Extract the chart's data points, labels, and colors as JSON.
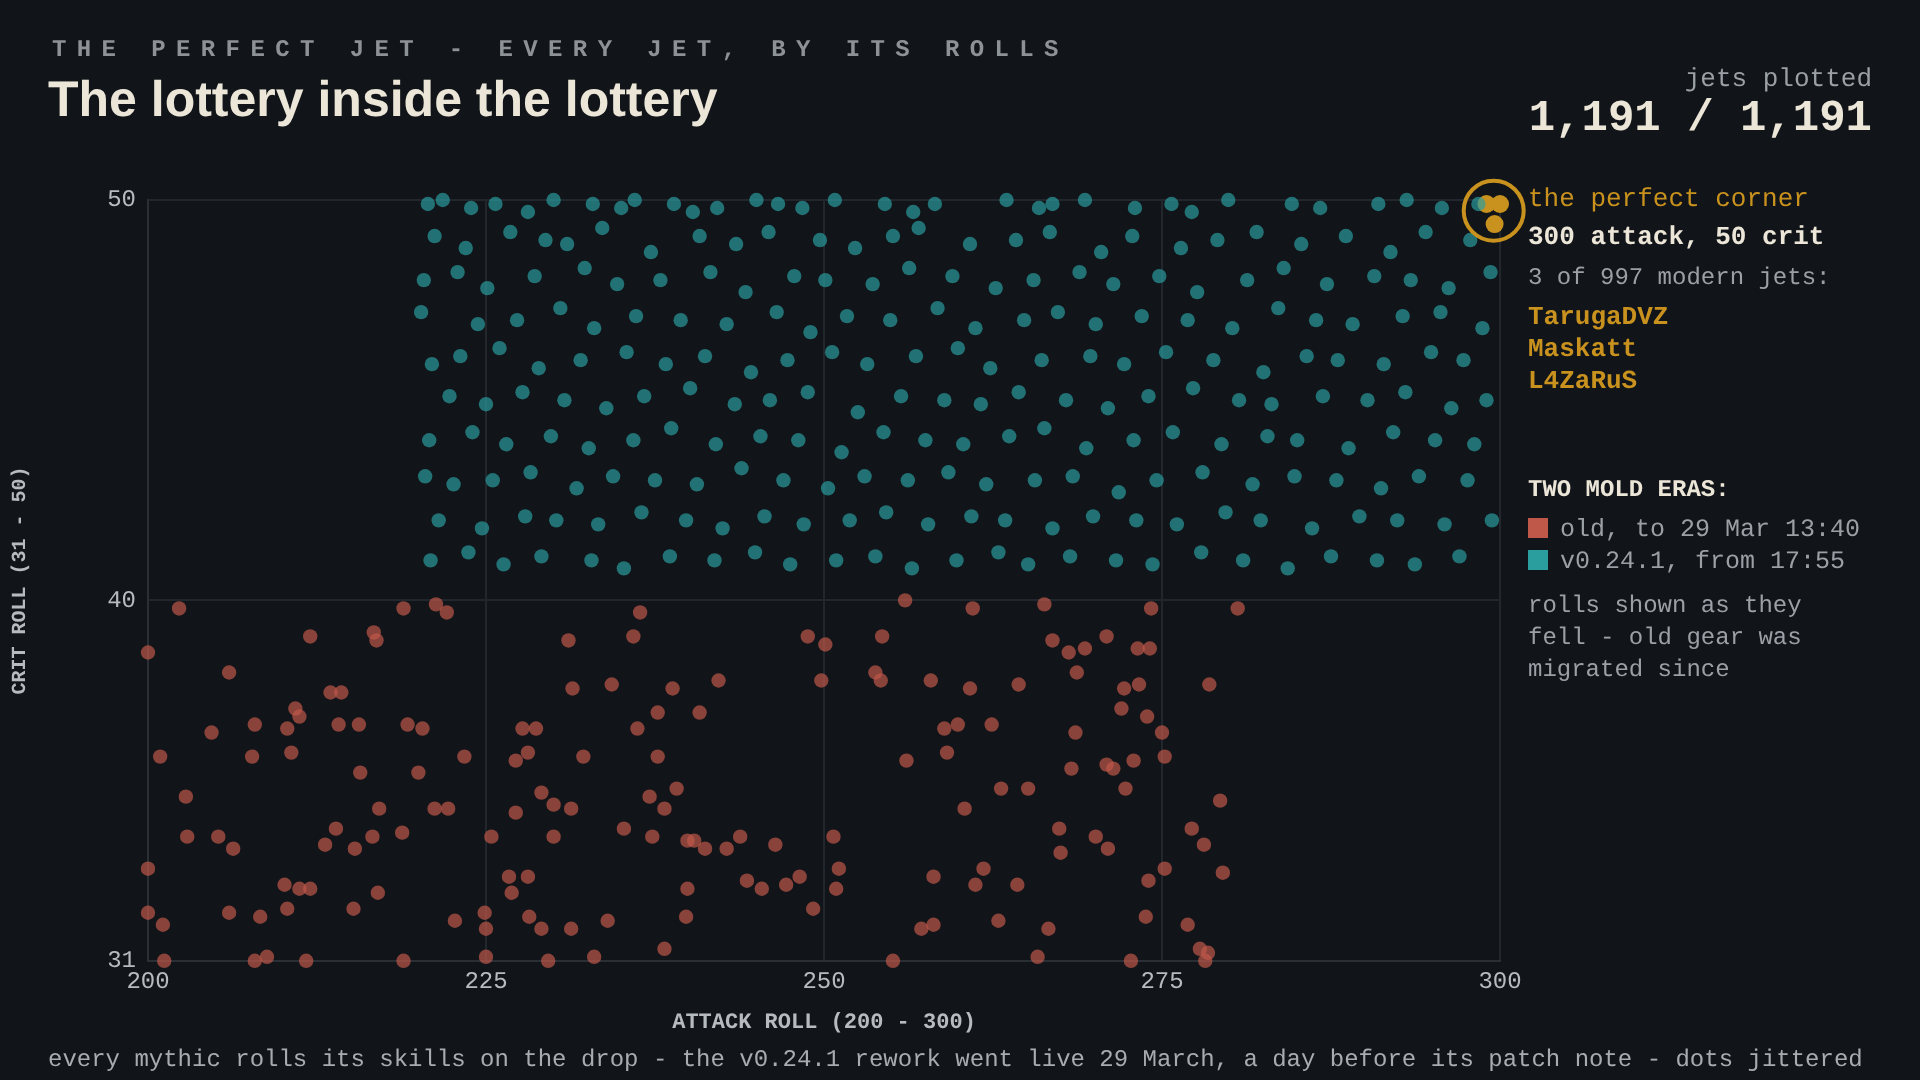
{
  "chart_data": {
    "type": "scatter",
    "subtitle": "THE PERFECT JET - EVERY JET, BY ITS ROLLS",
    "title": "The lottery inside the lottery",
    "xlabel": "ATTACK ROLL (200 - 300)",
    "ylabel": "CRIT ROLL (31 - 50)",
    "legend_title": "TWO MOLD ERAS:",
    "legend": "right",
    "grid": true,
    "marker": "circle",
    "xlim": [
      200,
      300
    ],
    "xticks": [
      200,
      225,
      250,
      275,
      300
    ],
    "ylim": [
      31,
      50
    ],
    "yticks": [
      31,
      40,
      50
    ],
    "annotations": [
      "jets plotted",
      "1,191 / 1,191",
      "300 attack, 50 crit",
      "3 of 997 modern jets:",
      "TarugaDVZ",
      "Maskatt",
      "L4ZaRuS",
      "rolls shown as they fell - old gear was migrated since",
      "every mythic rolls its skills on the drop - the v0.24.1 rework went live 29 March, a day before its patch note - dots jittered"
    ],
    "series": [
      {
        "name": "old, to 29 Mar 13:40",
        "color": "#c0584a",
        "x": [
          200,
          202.3,
          200.9,
          202.8,
          202.9,
          200,
          200,
          201.1,
          201.2,
          204.7,
          205.2,
          206,
          206.3,
          206,
          207.9,
          207.7,
          208.3,
          208.8,
          207.9,
          210.3,
          210.9,
          211.2,
          210.6,
          210.1,
          210.3,
          211.2,
          212,
          212,
          211.7,
          213.1,
          213.5,
          214.3,
          214.1,
          213.9,
          215.2,
          215.3,
          215.7,
          215.6,
          216.7,
          216.9,
          216.6,
          217.1,
          217,
          218.9,
          218.8,
          218.9,
          219.2,
          220,
          220.3,
          221.3,
          222.1,
          221.2,
          222.2,
          222.7,
          223.4,
          224.9,
          225,
          225,
          225.4,
          226.7,
          226.9,
          227.2,
          227.2,
          227.7,
          228.7,
          228.1,
          228.1,
          228.2,
          229.1,
          229.1,
          229.6,
          230,
          230,
          231.1,
          231.4,
          231.3,
          231.3,
          232.2,
          233,
          234,
          234.3,
          235.2,
          235.9,
          236.4,
          236.2,
          237.1,
          237.3,
          237.7,
          237.7,
          238.2,
          238.2,
          238.8,
          239.1,
          239.9,
          239.9,
          239.8,
          240.4,
          240.8,
          241.2,
          242.2,
          242.8,
          243.8,
          244.3,
          245.4,
          246.4,
          247.2,
          248.2,
          248.8,
          249.2,
          249.8,
          250.1,
          250.7,
          251.1,
          250.9,
          253.8,
          254.2,
          254.3,
          255.1,
          256,
          256.1,
          257.2,
          258.1,
          258.1,
          257.9,
          258.9,
          259.1,
          259.9,
          260.4,
          260.8,
          261,
          261.2,
          261.8,
          262.4,
          262.9,
          263.1,
          264.3,
          264.4,
          265.1,
          265.8,
          266.3,
          266.6,
          266.9,
          267.4,
          267.5,
          268.1,
          268.3,
          268.6,
          268.7,
          269.3,
          270.1,
          270.9,
          271,
          270.9,
          271.4,
          272,
          272.2,
          272.3,
          272.7,
          272.9,
          273.3,
          273.2,
          273.8,
          273.9,
          274.1,
          274.2,
          274,
          275,
          275.2,
          275.2,
          276.9,
          277.2,
          277.8,
          278.1,
          278.5,
          278.4,
          278.2,
          279.3,
          279.5,
          280.6
        ],
        "values": [
          38.7,
          39.8,
          36.1,
          35.1,
          34.1,
          33.3,
          32.2,
          31.9,
          31,
          36.7,
          34.1,
          38.2,
          33.8,
          32.2,
          36.9,
          36.1,
          32.1,
          31.1,
          31,
          36.8,
          37.3,
          37.1,
          36.2,
          32.9,
          32.3,
          32.8,
          39.1,
          32.8,
          31,
          33.9,
          37.7,
          37.7,
          36.9,
          34.3,
          32.3,
          33.8,
          35.7,
          36.9,
          39.2,
          39,
          34.1,
          34.8,
          32.7,
          39.8,
          34.2,
          31,
          36.9,
          35.7,
          36.8,
          39.9,
          39.7,
          34.8,
          34.8,
          32,
          36.1,
          32.2,
          31.8,
          31.1,
          34.1,
          33.1,
          32.7,
          34.7,
          36,
          36.8,
          36.8,
          36.2,
          33.1,
          32.1,
          35.2,
          31.8,
          31,
          34.9,
          34.1,
          39,
          37.8,
          34.8,
          31.8,
          36.1,
          31.1,
          32,
          37.9,
          34.3,
          39.1,
          39.7,
          36.8,
          35.1,
          34.1,
          37.2,
          36.1,
          34.8,
          31.3,
          37.8,
          35.3,
          34,
          32.8,
          32.1,
          34,
          37.2,
          33.8,
          38,
          33.8,
          34.1,
          33,
          32.8,
          33.9,
          32.9,
          33.1,
          39.1,
          32.3,
          38,
          38.9,
          34.1,
          33.3,
          32.8,
          38.2,
          38,
          39.1,
          31,
          40,
          36,
          31.8,
          31.9,
          33.1,
          38,
          36.8,
          36.2,
          36.9,
          34.8,
          37.8,
          39.8,
          32.9,
          33.3,
          36.9,
          32,
          35.3,
          32.9,
          37.9,
          35.3,
          31.1,
          39.9,
          31.8,
          39,
          34.3,
          33.7,
          38.7,
          35.8,
          36.7,
          38.2,
          38.8,
          34.1,
          39.1,
          33.8,
          35.9,
          35.8,
          37.3,
          37.8,
          35.3,
          31,
          36,
          37.9,
          38.8,
          32.1,
          37.1,
          38.8,
          39.8,
          33,
          36.7,
          36.1,
          33.3,
          31.9,
          34.3,
          31.3,
          33.9,
          37.9,
          31.2,
          31,
          35,
          33.2,
          39.8
        ]
      },
      {
        "name": "v0.24.1, from 17:55",
        "color": "#2a9d9f",
        "x": [
          220.7,
          221.8,
          223.9,
          225.7,
          228.1,
          230,
          232.9,
          235,
          236,
          238.9,
          240.3,
          242.1,
          245,
          246.6,
          248.4,
          250.8,
          254.5,
          256.6,
          258.2,
          263.5,
          265.9,
          266.9,
          269.3,
          273,
          275.7,
          277.2,
          279.9,
          284.6,
          286.7,
          291,
          293.1,
          295.7,
          298.4,
          221.2,
          223.5,
          226.8,
          229.4,
          231.0,
          233.6,
          237.2,
          240.8,
          243.5,
          245.9,
          249.7,
          252.3,
          255.1,
          257.0,
          260.8,
          264.2,
          266.7,
          270.5,
          272.8,
          276.4,
          279.1,
          282.0,
          285.3,
          288.6,
          291.9,
          294.5,
          297.8,
          220.4,
          222.9,
          225.1,
          228.6,
          232.3,
          234.7,
          237.9,
          241.6,
          244.2,
          247.8,
          250.1,
          253.6,
          256.3,
          259.5,
          262.7,
          265.5,
          268.9,
          271.4,
          274.8,
          277.6,
          281.3,
          284.0,
          287.2,
          290.7,
          293.4,
          296.2,
          299.3,
          220.2,
          224.4,
          227.3,
          230.5,
          233.0,
          236.1,
          239.4,
          242.8,
          246.5,
          249.0,
          251.7,
          254.9,
          258.4,
          261.2,
          264.8,
          267.3,
          270.1,
          273.5,
          276.9,
          280.2,
          283.6,
          286.4,
          289.1,
          292.8,
          295.6,
          298.7,
          221.0,
          223.1,
          226.0,
          228.9,
          232.0,
          235.4,
          238.3,
          241.2,
          244.6,
          247.3,
          250.6,
          253.2,
          256.8,
          259.9,
          262.3,
          266.1,
          269.7,
          272.2,
          275.3,
          278.8,
          282.5,
          285.7,
          288.0,
          291.4,
          294.9,
          297.3,
          222.3,
          225.0,
          227.7,
          230.8,
          233.9,
          236.7,
          240.1,
          243.4,
          246.0,
          248.8,
          252.5,
          255.7,
          258.9,
          261.6,
          264.4,
          267.9,
          271.0,
          274.0,
          277.3,
          280.7,
          283.1,
          286.9,
          290.2,
          293.0,
          296.4,
          299.0,
          220.8,
          224.0,
          226.5,
          229.8,
          232.6,
          235.9,
          238.7,
          242.0,
          245.3,
          248.1,
          251.3,
          254.4,
          257.5,
          260.3,
          263.7,
          266.3,
          269.4,
          272.9,
          275.8,
          279.4,
          282.8,
          285.0,
          288.8,
          292.1,
          295.2,
          298.1,
          220.5,
          222.6,
          225.5,
          228.3,
          231.7,
          234.4,
          237.5,
          240.6,
          243.9,
          247.0,
          250.3,
          253.0,
          256.2,
          259.2,
          262.0,
          265.6,
          268.4,
          271.8,
          274.6,
          278.0,
          281.7,
          284.8,
          287.9,
          291.2,
          294.0,
          297.6,
          221.5,
          224.7,
          227.9,
          230.2,
          233.3,
          236.5,
          239.8,
          242.5,
          245.6,
          248.5,
          251.9,
          254.6,
          257.7,
          260.9,
          263.4,
          266.9,
          269.9,
          273.1,
          276.1,
          279.7,
          282.3,
          286.1,
          289.6,
          292.4,
          295.9,
          299.4,
          220.9,
          223.7,
          226.3,
          229.1,
          232.8,
          235.2,
          238.6,
          241.9,
          244.9,
          247.5,
          250.9,
          253.8,
          256.5,
          259.8,
          262.9,
          265.1,
          268.2,
          271.6,
          274.3,
          277.9,
          281.0,
          284.3,
          287.5,
          290.9,
          293.7,
          297.0
        ],
        "values": [
          49.9,
          50,
          49.8,
          49.9,
          49.7,
          50,
          49.9,
          49.8,
          50,
          49.9,
          49.7,
          49.8,
          50,
          49.9,
          49.8,
          50,
          49.9,
          49.7,
          49.9,
          50,
          49.8,
          49.9,
          50,
          49.8,
          49.9,
          49.7,
          50,
          49.9,
          49.8,
          49.9,
          50,
          49.8,
          49.9,
          49.1,
          48.8,
          49.2,
          49,
          48.9,
          49.3,
          48.7,
          49.1,
          48.9,
          49.2,
          49,
          48.8,
          49.1,
          49.3,
          48.9,
          49,
          49.2,
          48.7,
          49.1,
          48.8,
          49,
          49.2,
          48.9,
          49.1,
          48.7,
          49.2,
          49,
          48,
          48.2,
          47.8,
          48.1,
          48.3,
          47.9,
          48,
          48.2,
          47.7,
          48.1,
          48,
          47.9,
          48.3,
          48.1,
          47.8,
          48,
          48.2,
          47.9,
          48.1,
          47.7,
          48,
          48.3,
          47.9,
          48.1,
          48,
          47.8,
          48.2,
          47.2,
          46.9,
          47,
          47.3,
          46.8,
          47.1,
          47,
          46.9,
          47.2,
          46.7,
          47.1,
          47,
          47.3,
          46.8,
          47,
          47.2,
          46.9,
          47.1,
          47,
          46.8,
          47.3,
          47,
          46.9,
          47.1,
          47.2,
          46.8,
          45.9,
          46.1,
          46.3,
          45.8,
          46,
          46.2,
          45.9,
          46.1,
          45.7,
          46,
          46.2,
          45.9,
          46.1,
          46.3,
          45.8,
          46,
          46.1,
          45.9,
          46.2,
          46,
          45.7,
          46.1,
          46,
          45.9,
          46.2,
          46,
          45.1,
          44.9,
          45.2,
          45,
          44.8,
          45.1,
          45.3,
          44.9,
          45,
          45.2,
          44.7,
          45.1,
          45,
          44.9,
          45.2,
          45,
          44.8,
          45.1,
          45.3,
          45,
          44.9,
          45.1,
          45,
          45.2,
          44.8,
          45,
          44,
          44.2,
          43.9,
          44.1,
          43.8,
          44,
          44.3,
          43.9,
          44.1,
          44,
          43.7,
          44.2,
          44,
          43.9,
          44.1,
          44.3,
          43.8,
          44,
          44.2,
          43.9,
          44.1,
          44,
          43.8,
          44.2,
          44,
          43.9,
          43.1,
          42.9,
          43,
          43.2,
          42.8,
          43.1,
          43,
          42.9,
          43.3,
          43,
          42.8,
          43.1,
          43,
          43.2,
          42.9,
          43,
          43.1,
          42.7,
          43,
          43.2,
          42.9,
          43.1,
          43,
          42.8,
          43.1,
          43,
          42,
          41.8,
          42.1,
          42,
          41.9,
          42.2,
          42,
          41.8,
          42.1,
          41.9,
          42,
          42.2,
          41.9,
          42.1,
          42,
          41.8,
          42.1,
          42,
          41.9,
          42.2,
          42,
          41.8,
          42.1,
          42,
          41.9,
          42,
          41,
          41.2,
          40.9,
          41.1,
          41,
          40.8,
          41.1,
          41,
          41.2,
          40.9,
          41,
          41.1,
          40.8,
          41,
          41.2,
          40.9,
          41.1,
          41,
          40.9,
          41.2,
          41,
          40.8,
          41.1,
          41,
          40.9,
          41.1
        ]
      },
      {
        "name": "the perfect corner",
        "color": "#c9921e",
        "x": [
          299,
          300,
          299.6
        ],
        "values": [
          49.9,
          49.9,
          49.4
        ]
      }
    ]
  }
}
